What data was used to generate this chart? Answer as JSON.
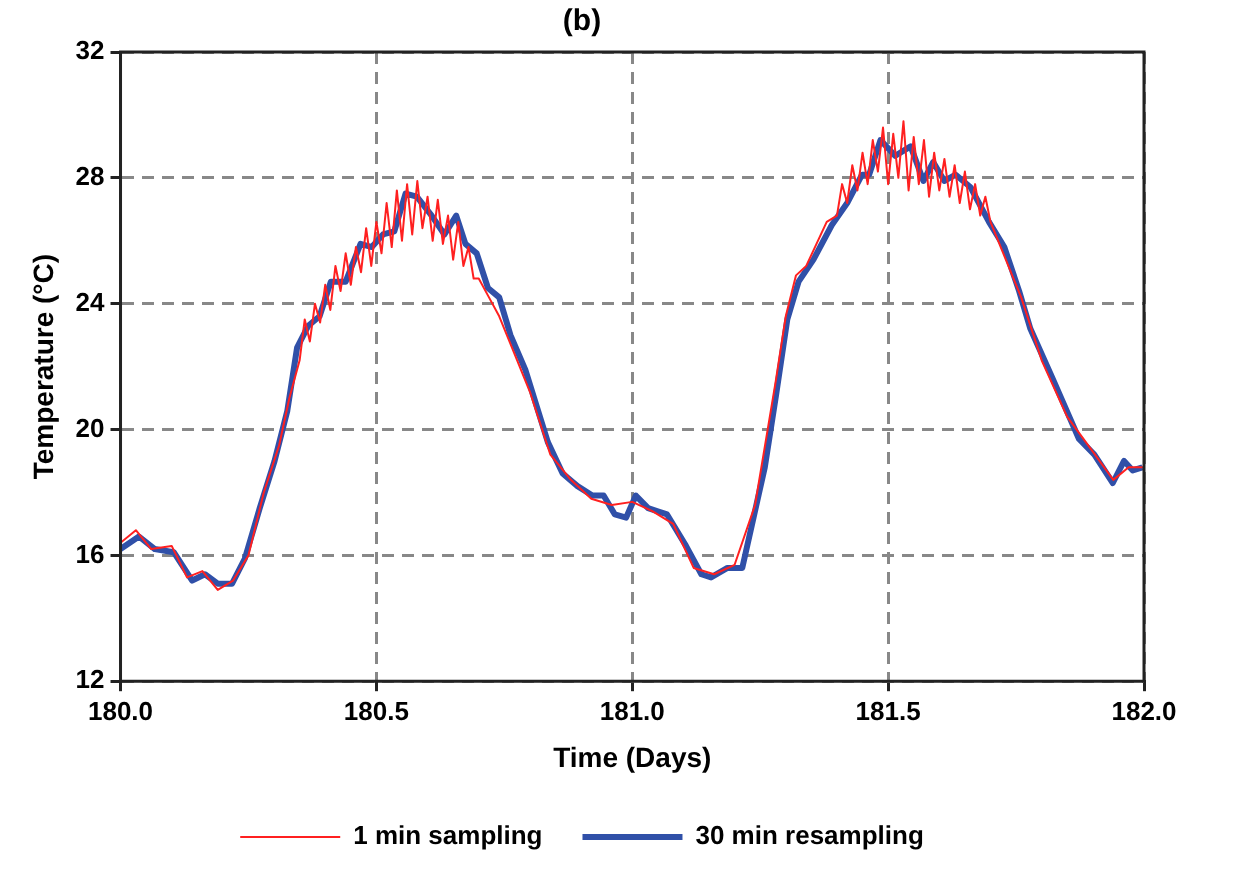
{
  "chart_data": {
    "type": "line",
    "title": "(b)",
    "xlabel": "Time (Days)",
    "ylabel": "Temperature (°C)",
    "xlim": [
      180,
      182
    ],
    "xticks": [
      {
        "value": 180,
        "label": "180.0"
      },
      {
        "value": 180.5,
        "label": "180.5"
      },
      {
        "value": 181,
        "label": "181.0"
      },
      {
        "value": 181.5,
        "label": "181.5"
      },
      {
        "value": 182,
        "label": "182.0"
      }
    ],
    "ylim": [
      12,
      32
    ],
    "yticks": [
      12,
      16,
      20,
      24,
      28,
      32
    ],
    "grid": true,
    "legend": "bottom",
    "marker": "none",
    "series": [
      {
        "name": "1 min sampling",
        "color": "#ff2020",
        "x": [
          180,
          180.03,
          180.06,
          180.1,
          180.13,
          180.16,
          180.19,
          180.22,
          180.25,
          180.28,
          180.31,
          180.33,
          180.35,
          180.36,
          180.37,
          180.38,
          180.39,
          180.4,
          180.41,
          180.42,
          180.43,
          180.44,
          180.45,
          180.46,
          180.47,
          180.48,
          180.49,
          180.5,
          180.51,
          180.52,
          180.53,
          180.54,
          180.55,
          180.56,
          180.57,
          180.58,
          180.59,
          180.6,
          180.61,
          180.62,
          180.63,
          180.64,
          180.65,
          180.66,
          180.67,
          180.68,
          180.69,
          180.7,
          180.72,
          180.74,
          180.76,
          180.8,
          180.84,
          180.88,
          180.92,
          180.96,
          181,
          181.04,
          181.08,
          181.12,
          181.16,
          181.2,
          181.24,
          181.28,
          181.3,
          181.32,
          181.34,
          181.36,
          181.38,
          181.4,
          181.41,
          181.42,
          181.43,
          181.44,
          181.45,
          181.46,
          181.47,
          181.48,
          181.49,
          181.5,
          181.51,
          181.52,
          181.53,
          181.54,
          181.55,
          181.56,
          181.57,
          181.58,
          181.59,
          181.6,
          181.61,
          181.62,
          181.63,
          181.64,
          181.65,
          181.66,
          181.67,
          181.68,
          181.69,
          181.7,
          181.72,
          181.76,
          181.8,
          181.85,
          181.9,
          181.94,
          181.97,
          182
        ],
        "values": [
          16.4,
          16.8,
          16.2,
          16.3,
          15.3,
          15.5,
          14.9,
          15.2,
          16,
          18,
          19.5,
          21,
          22.2,
          23.5,
          22.8,
          24,
          23.4,
          24.6,
          23.8,
          25.2,
          24.4,
          25.6,
          24.6,
          25.8,
          25,
          26.4,
          25.2,
          26.6,
          25.6,
          27.2,
          25.8,
          27.6,
          26,
          27.8,
          26.2,
          27.9,
          26.4,
          27.4,
          26,
          27.3,
          25.9,
          26.8,
          25.4,
          26.6,
          25.2,
          25.8,
          24.8,
          24.8,
          24.2,
          23.6,
          22.8,
          21.2,
          19.2,
          18.4,
          17.8,
          17.6,
          17.7,
          17.4,
          17,
          15.6,
          15.4,
          15.7,
          17.6,
          21.5,
          23.6,
          24.9,
          25.2,
          25.9,
          26.6,
          26.8,
          27.8,
          27.2,
          28.4,
          27.6,
          28.8,
          27.8,
          29.2,
          28.2,
          29.6,
          27.8,
          29.4,
          28,
          29.8,
          27.6,
          29.3,
          27.8,
          29.2,
          27.4,
          28.8,
          27.6,
          28.6,
          27.4,
          28.4,
          27.2,
          28.2,
          27,
          27.8,
          26.8,
          27.4,
          26.6,
          25.8,
          24.2,
          22.2,
          20.4,
          19.3,
          18.4,
          18.8,
          18.8
        ]
      },
      {
        "name": "30 min resampling",
        "color": "#3050a8",
        "x": [
          180,
          180.036,
          180.067,
          180.104,
          180.14,
          180.165,
          180.19,
          180.218,
          180.243,
          180.272,
          180.301,
          180.326,
          180.345,
          180.367,
          180.389,
          180.411,
          180.44,
          180.469,
          180.491,
          180.513,
          180.535,
          180.557,
          180.579,
          180.608,
          180.633,
          180.656,
          180.674,
          180.696,
          180.718,
          180.74,
          180.762,
          180.791,
          180.835,
          180.864,
          180.893,
          180.922,
          180.944,
          180.966,
          180.988,
          181.007,
          181.031,
          181.068,
          181.105,
          181.135,
          181.154,
          181.186,
          181.215,
          181.237,
          181.259,
          181.281,
          181.303,
          181.325,
          181.354,
          181.39,
          181.42,
          181.449,
          181.463,
          181.485,
          181.514,
          181.544,
          181.569,
          181.588,
          181.61,
          181.632,
          181.661,
          181.697,
          181.727,
          181.756,
          181.778,
          181.822,
          181.873,
          181.903,
          181.939,
          181.961,
          181.978,
          181.997
        ],
        "values": [
          16.2,
          16.6,
          16.2,
          16.1,
          15.2,
          15.4,
          15.1,
          15.1,
          15.9,
          17.5,
          19,
          20.6,
          22.6,
          23.3,
          23.6,
          24.7,
          24.7,
          25.9,
          25.8,
          26.2,
          26.3,
          27.5,
          27.4,
          26.8,
          26.2,
          26.8,
          25.9,
          25.6,
          24.5,
          24.2,
          23,
          21.9,
          19.6,
          18.6,
          18.2,
          17.9,
          17.9,
          17.3,
          17.2,
          17.9,
          17.5,
          17.3,
          16.3,
          15.4,
          15.3,
          15.6,
          15.6,
          17.2,
          18.8,
          21.1,
          23.5,
          24.7,
          25.4,
          26.5,
          27.2,
          28.1,
          28.1,
          29.2,
          28.7,
          29,
          27.9,
          28.5,
          27.9,
          28.1,
          27.7,
          26.6,
          25.8,
          24.4,
          23.2,
          21.6,
          19.7,
          19.2,
          18.3,
          19,
          18.7,
          18.8
        ]
      }
    ]
  }
}
